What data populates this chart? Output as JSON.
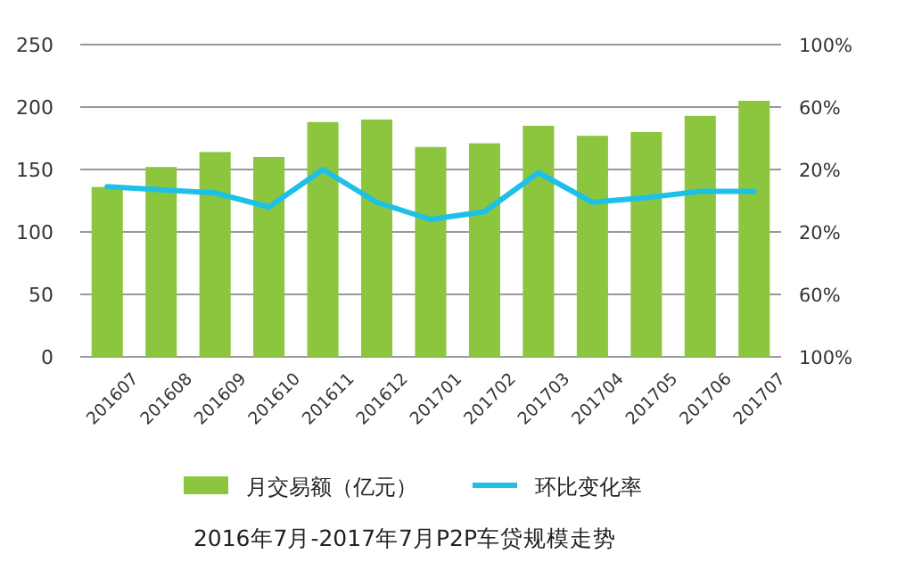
{
  "chart_data": {
    "type": "bar",
    "title": "2016年7月-2017年7月P2P车贷规模走势",
    "categories": [
      "201607",
      "201608",
      "201609",
      "201610",
      "201611",
      "201612",
      "201701",
      "201702",
      "201703",
      "201704",
      "201705",
      "201706",
      "201707"
    ],
    "series": [
      {
        "name": "月交易额（亿元）",
        "color": "#8cc63f",
        "values": [
          136,
          152,
          164,
          160,
          188,
          190,
          168,
          171,
          185,
          177,
          180,
          193,
          205
        ]
      },
      {
        "name": "环比变化率",
        "type": "line",
        "axis": "y2",
        "color": "#1ec0e6",
        "values": [
          9,
          7,
          5,
          -4,
          20,
          -1,
          -12,
          -7,
          18,
          -1,
          2,
          6,
          6
        ]
      }
    ],
    "ylim": [
      0,
      250
    ],
    "yticks": [
      0,
      50,
      100,
      150,
      200,
      250
    ],
    "y2lim": [
      -100,
      100
    ],
    "y2ticks": [
      {
        "value": -100,
        "label": "100%"
      },
      {
        "value": -60,
        "label": "60%"
      },
      {
        "value": -20,
        "label": "20%"
      },
      {
        "value": 20,
        "label": "20%"
      },
      {
        "value": 60,
        "label": "60%"
      },
      {
        "value": 100,
        "label": "100%"
      }
    ],
    "grid": "y",
    "legend": "bottom"
  }
}
